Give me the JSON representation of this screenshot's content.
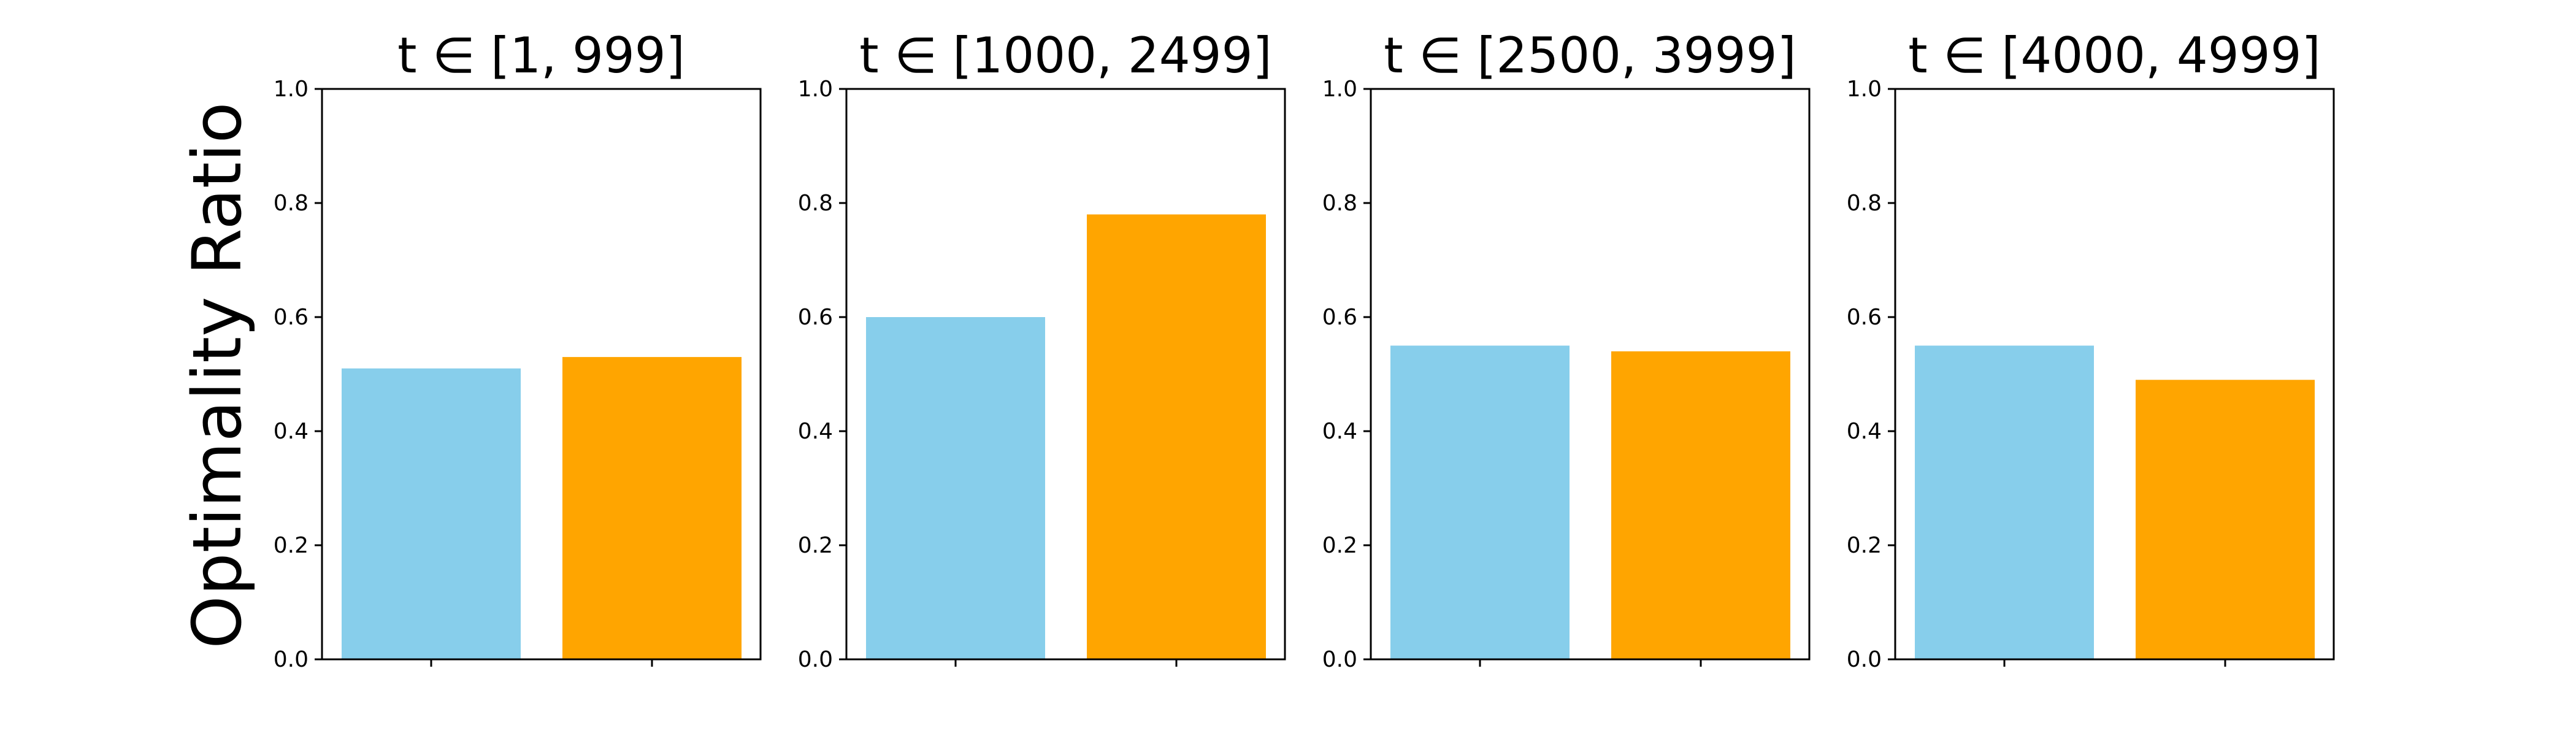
{
  "figure": {
    "ylabel": "Optimality Ratio"
  },
  "colors": {
    "series_a": "#87CEEB",
    "series_b": "#FFA500"
  },
  "chart_data": [
    {
      "type": "bar",
      "title": "t ∈ [1, 999]",
      "categories": [
        "",
        ""
      ],
      "values": [
        0.51,
        0.53
      ],
      "ylim": [
        0,
        1.0
      ],
      "yticks": [
        "0.0",
        "0.2",
        "0.4",
        "0.6",
        "0.8",
        "1.0"
      ],
      "grid": false
    },
    {
      "type": "bar",
      "title": "t ∈ [1000, 2499]",
      "categories": [
        "",
        ""
      ],
      "values": [
        0.6,
        0.78
      ],
      "ylim": [
        0,
        1.0
      ],
      "yticks": [
        "0.0",
        "0.2",
        "0.4",
        "0.6",
        "0.8",
        "1.0"
      ],
      "grid": false
    },
    {
      "type": "bar",
      "title": "t ∈ [2500, 3999]",
      "categories": [
        "",
        ""
      ],
      "values": [
        0.55,
        0.54
      ],
      "ylim": [
        0,
        1.0
      ],
      "yticks": [
        "0.0",
        "0.2",
        "0.4",
        "0.6",
        "0.8",
        "1.0"
      ],
      "grid": false
    },
    {
      "type": "bar",
      "title": "t ∈ [4000, 4999]",
      "categories": [
        "",
        ""
      ],
      "values": [
        0.55,
        0.49
      ],
      "ylim": [
        0,
        1.0
      ],
      "yticks": [
        "0.0",
        "0.2",
        "0.4",
        "0.6",
        "0.8",
        "1.0"
      ],
      "grid": false
    }
  ]
}
